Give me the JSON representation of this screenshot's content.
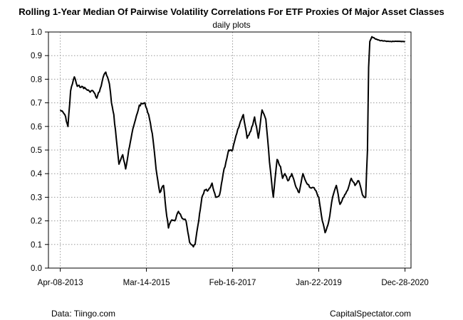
{
  "chart_data": {
    "type": "line",
    "title": "Rolling 1-Year Median Of Pairwise Volatility Correlations For ETF Proxies Of Major Asset Classes",
    "subtitle": "daily plots",
    "xlabel": "",
    "ylabel": "",
    "ylim": [
      0,
      1
    ],
    "yticks": [
      "0.0",
      "0.1",
      "0.2",
      "0.3",
      "0.4",
      "0.5",
      "0.6",
      "0.7",
      "0.8",
      "0.9",
      "1.0"
    ],
    "xticks": [
      "Apr-08-2013",
      "Mar-14-2015",
      "Feb-16-2017",
      "Jan-22-2019",
      "Dec-28-2020"
    ],
    "xrange": [
      "Jan-01-2013",
      "Feb-15-2021"
    ],
    "grid": true,
    "legend": "none",
    "line_color": "#000000",
    "x": [
      "2013-04-08",
      "2013-05-15",
      "2013-06-10",
      "2013-07-01",
      "2013-08-01",
      "2013-08-25",
      "2013-10-01",
      "2013-11-01",
      "2013-12-01",
      "2014-01-01",
      "2014-02-01",
      "2014-03-01",
      "2014-04-01",
      "2014-04-15",
      "2014-05-15",
      "2014-06-01",
      "2014-06-20",
      "2014-07-10",
      "2014-08-01",
      "2014-09-01",
      "2014-09-25",
      "2014-10-20",
      "2014-11-15",
      "2014-12-15",
      "2015-01-15",
      "2015-03-01",
      "2015-04-01",
      "2015-05-01",
      "2015-06-01",
      "2015-07-01",
      "2015-08-01",
      "2015-08-20",
      "2015-09-10",
      "2015-10-01",
      "2015-11-01",
      "2015-12-01",
      "2016-01-01",
      "2016-02-01",
      "2016-03-01",
      "2016-04-01",
      "2016-04-15",
      "2016-05-15",
      "2016-06-10",
      "2016-07-01",
      "2016-08-01",
      "2016-09-01",
      "2016-10-01",
      "2016-11-01",
      "2016-12-01",
      "2017-01-15",
      "2017-02-16",
      "2017-03-15",
      "2017-04-15",
      "2017-05-15",
      "2017-06-15",
      "2017-07-15",
      "2017-08-15",
      "2017-09-15",
      "2017-10-15",
      "2017-11-15",
      "2017-12-15",
      "2018-01-15",
      "2018-02-15",
      "2018-03-15",
      "2018-04-01",
      "2018-04-20",
      "2018-05-15",
      "2018-06-15",
      "2018-07-15",
      "2018-08-15",
      "2018-09-15",
      "2018-10-15",
      "2018-11-15",
      "2018-12-15",
      "2019-01-22",
      "2019-02-20",
      "2019-03-15",
      "2019-04-15",
      "2019-05-15",
      "2019-06-15",
      "2019-07-15",
      "2019-08-15",
      "2019-09-15",
      "2019-10-15",
      "2019-11-15",
      "2019-12-15",
      "2020-01-15",
      "2020-02-10",
      "2020-02-25",
      "2020-03-05",
      "2020-03-15",
      "2020-04-01",
      "2020-05-01",
      "2020-06-01",
      "2020-08-01",
      "2020-10-01",
      "2020-12-28"
    ],
    "values": [
      0.67,
      0.65,
      0.6,
      0.75,
      0.81,
      0.77,
      0.77,
      0.76,
      0.75,
      0.75,
      0.72,
      0.76,
      0.82,
      0.83,
      0.78,
      0.7,
      0.65,
      0.55,
      0.44,
      0.48,
      0.42,
      0.5,
      0.57,
      0.63,
      0.69,
      0.7,
      0.65,
      0.57,
      0.42,
      0.32,
      0.35,
      0.25,
      0.17,
      0.2,
      0.2,
      0.24,
      0.21,
      0.2,
      0.11,
      0.09,
      0.1,
      0.2,
      0.3,
      0.33,
      0.33,
      0.36,
      0.3,
      0.31,
      0.4,
      0.5,
      0.5,
      0.56,
      0.61,
      0.65,
      0.55,
      0.58,
      0.64,
      0.55,
      0.67,
      0.63,
      0.45,
      0.3,
      0.46,
      0.43,
      0.38,
      0.4,
      0.37,
      0.4,
      0.35,
      0.32,
      0.4,
      0.36,
      0.34,
      0.34,
      0.3,
      0.2,
      0.15,
      0.2,
      0.3,
      0.35,
      0.27,
      0.3,
      0.33,
      0.38,
      0.35,
      0.37,
      0.31,
      0.3,
      0.5,
      0.85,
      0.96,
      0.98,
      0.97,
      0.965,
      0.96,
      0.96,
      0.96
    ]
  },
  "footer": {
    "source_left": "Data: Tiingo.com",
    "source_right": "CapitalSpectator.com"
  }
}
